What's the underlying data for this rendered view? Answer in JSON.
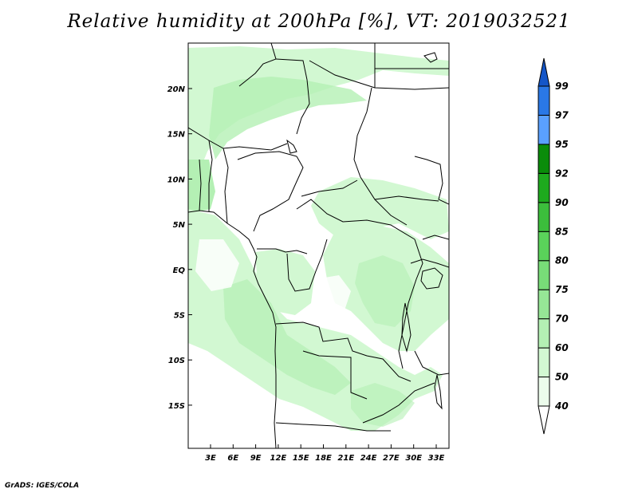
{
  "title": "Relative humidity at 200hPa [%], VT: 2019032521",
  "credit": "GrADS: IGES/COLA",
  "map": {
    "lon_labels": [
      "3E",
      "6E",
      "9E",
      "12E",
      "15E",
      "18E",
      "21E",
      "24E",
      "27E",
      "30E",
      "33E"
    ],
    "lat_labels": [
      "20N",
      "15N",
      "10N",
      "5N",
      "EQ",
      "5S",
      "10S",
      "15S"
    ]
  },
  "colorbar": {
    "levels": [
      "40",
      "50",
      "60",
      "70",
      "75",
      "80",
      "85",
      "90",
      "92",
      "95",
      "97",
      "99"
    ],
    "colors": [
      "#ffffff",
      "#ecfcec",
      "#d2f8d2",
      "#b4f0b4",
      "#96e696",
      "#78dc78",
      "#5ad25a",
      "#3cbe3c",
      "#1eaa1e",
      "#0a8c0a",
      "#5aa0ff",
      "#2a78e6",
      "#1456c8"
    ]
  },
  "colors": {
    "lightest_green": "#ecfcec",
    "light_green": "#d2f8d2",
    "medium_green": "#b4f0b4",
    "borders": "#000000"
  }
}
